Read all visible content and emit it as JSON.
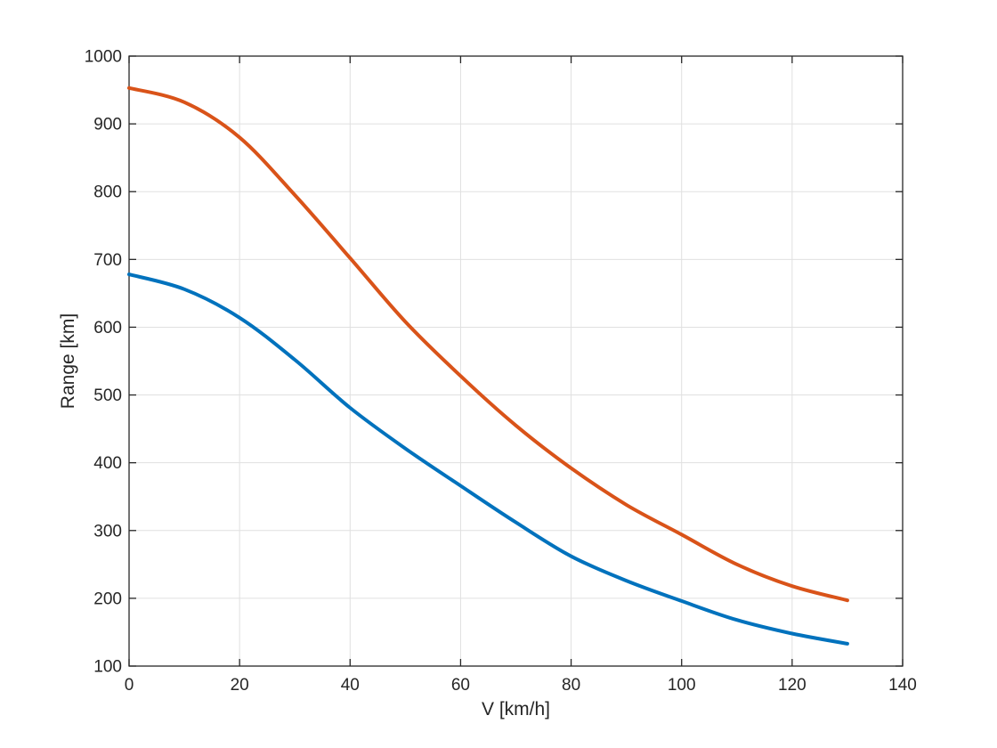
{
  "chart_data": {
    "type": "line",
    "title": "",
    "xlabel": "V [km/h]",
    "ylabel": "Range [km]",
    "xlim": [
      0,
      140
    ],
    "ylim": [
      100,
      1000
    ],
    "xticks": [
      0,
      20,
      40,
      60,
      80,
      100,
      120,
      140
    ],
    "yticks": [
      100,
      200,
      300,
      400,
      500,
      600,
      700,
      800,
      900,
      1000
    ],
    "grid": true,
    "legend": "none",
    "x": [
      0,
      10,
      20,
      30,
      40,
      50,
      60,
      70,
      80,
      90,
      100,
      110,
      120,
      130
    ],
    "series": [
      {
        "name": "orange-curve",
        "color": "#D95319",
        "line_width": 4,
        "values": [
          953,
          932,
          880,
          795,
          702,
          608,
          528,
          455,
          392,
          338,
          294,
          250,
          218,
          197
        ]
      },
      {
        "name": "blue-curve",
        "color": "#0072BD",
        "line_width": 4,
        "values": [
          678,
          656,
          614,
          552,
          481,
          421,
          366,
          312,
          262,
          226,
          196,
          168,
          148,
          133
        ]
      }
    ]
  },
  "colors": {
    "background": "#ffffff",
    "axis": "#262626",
    "grid": "#e0e0e0",
    "text": "#262626"
  }
}
